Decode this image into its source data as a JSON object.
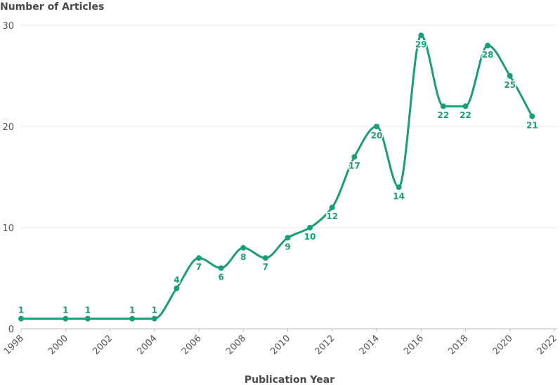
{
  "chart_data": {
    "type": "line",
    "title": "",
    "ylabel": "Number of Articles",
    "xlabel": "Publication Year",
    "xlim": [
      1998,
      2022
    ],
    "ylim": [
      0,
      30
    ],
    "x_ticks": [
      1998,
      2000,
      2002,
      2004,
      2006,
      2008,
      2010,
      2012,
      2014,
      2016,
      2018,
      2020,
      2022
    ],
    "y_ticks": [
      0,
      10,
      20,
      30
    ],
    "grid": true,
    "color": "#1a9e77",
    "series": [
      {
        "x": [
          1998,
          2000,
          2001,
          2003,
          2004,
          2005,
          2006,
          2007,
          2008,
          2009,
          2010,
          2011,
          2012,
          2013,
          2014,
          2015,
          2016,
          2017,
          2018,
          2019,
          2020,
          2021
        ],
        "y": [
          1,
          1,
          1,
          1,
          1,
          4,
          7,
          6,
          8,
          7,
          9,
          10,
          12,
          17,
          20,
          14,
          29,
          22,
          22,
          28,
          25,
          21
        ],
        "label_pos": [
          "above",
          "above",
          "above",
          "above",
          "above",
          "above",
          "below",
          "below",
          "below",
          "below",
          "below",
          "below",
          "below",
          "below",
          "below",
          "below",
          "below",
          "below",
          "below",
          "below",
          "below",
          "below"
        ]
      }
    ]
  }
}
